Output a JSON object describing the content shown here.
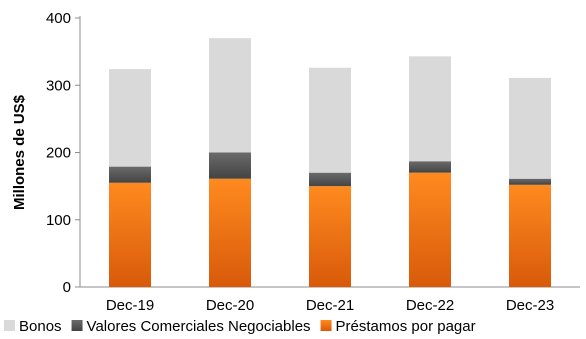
{
  "chart_data": {
    "type": "bar",
    "stacked": true,
    "categories": [
      "Dec-19",
      "Dec-20",
      "Dec-21",
      "Dec-22",
      "Dec-23"
    ],
    "series": [
      {
        "name": "Préstamos por pagar",
        "values": [
          155,
          161,
          150,
          170,
          152
        ],
        "color": "#f07818"
      },
      {
        "name": "Valores Comerciales Negociables",
        "values": [
          24,
          39,
          20,
          17,
          9
        ],
        "color": "#595959"
      },
      {
        "name": "Bonos",
        "values": [
          145,
          170,
          156,
          156,
          150
        ],
        "color": "#d9d9d9"
      }
    ],
    "legend_order": [
      "Bonos",
      "Valores Comerciales Negociables",
      "Préstamos por pagar"
    ],
    "ylabel": "Millones de US$",
    "xlabel": "",
    "ylim": [
      0,
      400
    ],
    "yticks": [
      0,
      100,
      200,
      300,
      400
    ],
    "grid": false,
    "legend_position": "bottom"
  }
}
